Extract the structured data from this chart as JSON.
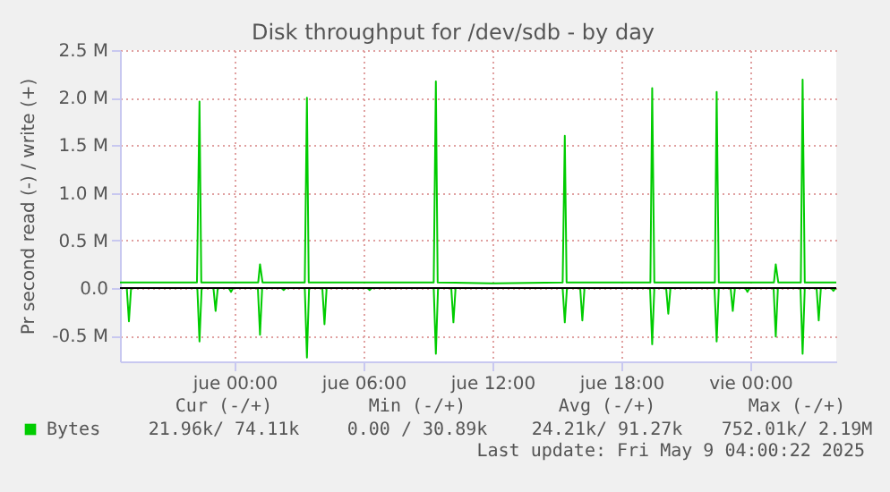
{
  "chart_data": {
    "type": "line",
    "title": "Disk throughput for /dev/sdb - by day",
    "ylabel": "Pr second read (-) / write (+)",
    "xlim": [
      "2025-05-07T18:40",
      "2025-05-09T04:00"
    ],
    "xticks": [
      {
        "value": "2025-05-08T00:00",
        "label": "jue 00:00"
      },
      {
        "value": "2025-05-08T06:00",
        "label": "jue 06:00"
      },
      {
        "value": "2025-05-08T12:00",
        "label": "jue 12:00"
      },
      {
        "value": "2025-05-08T18:00",
        "label": "jue 18:00"
      },
      {
        "value": "2025-05-09T00:00",
        "label": "vie 00:00"
      }
    ],
    "ylim": [
      -0.77,
      2.5
    ],
    "yticks": [
      {
        "value": -0.5,
        "label": "-0.5 M"
      },
      {
        "value": 0,
        "label": "0.0"
      },
      {
        "value": 0.5,
        "label": "0.5 M"
      },
      {
        "value": 1.0,
        "label": "1.0 M"
      },
      {
        "value": 1.5,
        "label": "1.5 M"
      },
      {
        "value": 2.0,
        "label": "2.0 M"
      },
      {
        "value": 2.5,
        "label": "2.5 M"
      }
    ],
    "grid": true,
    "legend": "bottom",
    "ref_lines": [
      {
        "axis": "y",
        "value": 0,
        "color": "#000000"
      }
    ],
    "series": [
      {
        "name": "Bytes",
        "color": "#00cc00",
        "x": [
          "2025-05-07T18:40",
          "2025-05-07T21:00",
          "2025-05-07T22:15",
          "2025-05-07T22:22",
          "2025-05-07T22:27",
          "2025-05-08T00:00",
          "2025-05-08T01:06",
          "2025-05-08T01:11",
          "2025-05-08T01:18",
          "2025-05-08T03:16",
          "2025-05-08T03:22",
          "2025-05-08T03:27",
          "2025-05-08T06:00",
          "2025-05-08T09:16",
          "2025-05-08T09:22",
          "2025-05-08T09:27",
          "2025-05-08T12:00",
          "2025-05-08T15:16",
          "2025-05-08T15:22",
          "2025-05-08T15:27",
          "2025-05-08T18:00",
          "2025-05-08T19:21",
          "2025-05-08T19:26",
          "2025-05-08T19:32",
          "2025-05-08T22:21",
          "2025-05-08T22:26",
          "2025-05-08T22:32",
          "2025-05-09T01:06",
          "2025-05-09T01:11",
          "2025-05-09T01:18",
          "2025-05-09T02:21",
          "2025-05-09T02:26",
          "2025-05-09T02:32",
          "2025-05-09T04:00"
        ],
        "values": [
          0.06,
          0.06,
          0.06,
          1.96,
          0.06,
          0.06,
          0.06,
          0.25,
          0.06,
          0.06,
          2.0,
          0.06,
          0.06,
          0.06,
          2.17,
          0.06,
          0.05,
          0.06,
          1.6,
          0.06,
          0.06,
          0.06,
          2.1,
          0.06,
          0.06,
          2.06,
          0.06,
          0.06,
          0.25,
          0.06,
          0.06,
          2.19,
          0.06,
          0.06
        ]
      },
      {
        "color": "#00cc00",
        "x": [
          "2025-05-07T18:40",
          "2025-05-07T18:59",
          "2025-05-07T19:05",
          "2025-05-07T19:11",
          "2025-05-07T22:16",
          "2025-05-07T22:22",
          "2025-05-07T22:28",
          "2025-05-07T23:01",
          "2025-05-07T23:07",
          "2025-05-07T23:13",
          "2025-05-07T23:44",
          "2025-05-07T23:50",
          "2025-05-07T23:56",
          "2025-05-08T01:05",
          "2025-05-08T01:11",
          "2025-05-08T01:17",
          "2025-05-08T02:11",
          "2025-05-08T02:17",
          "2025-05-08T02:23",
          "2025-05-08T03:16",
          "2025-05-08T03:22",
          "2025-05-08T03:28",
          "2025-05-08T04:05",
          "2025-05-08T04:11",
          "2025-05-08T04:17",
          "2025-05-08T06:11",
          "2025-05-08T06:17",
          "2025-05-08T06:23",
          "2025-05-08T09:16",
          "2025-05-08T09:22",
          "2025-05-08T09:28",
          "2025-05-08T10:05",
          "2025-05-08T10:11",
          "2025-05-08T10:17",
          "2025-05-08T15:16",
          "2025-05-08T15:22",
          "2025-05-08T15:28",
          "2025-05-08T16:05",
          "2025-05-08T16:11",
          "2025-05-08T16:17",
          "2025-05-08T19:20",
          "2025-05-08T19:26",
          "2025-05-08T19:32",
          "2025-05-08T20:05",
          "2025-05-08T20:11",
          "2025-05-08T20:17",
          "2025-05-08T22:20",
          "2025-05-08T22:26",
          "2025-05-08T22:32",
          "2025-05-08T23:05",
          "2025-05-08T23:11",
          "2025-05-08T23:17",
          "2025-05-08T23:46",
          "2025-05-08T23:52",
          "2025-05-08T23:58",
          "2025-05-09T01:05",
          "2025-05-09T01:11",
          "2025-05-09T01:17",
          "2025-05-09T02:20",
          "2025-05-09T02:26",
          "2025-05-09T02:32",
          "2025-05-09T03:05",
          "2025-05-09T03:11",
          "2025-05-09T03:17",
          "2025-05-09T03:46",
          "2025-05-09T03:52",
          "2025-05-09T03:58"
        ],
        "values": [
          0,
          0,
          -0.35,
          0,
          0,
          -0.56,
          0,
          0,
          -0.24,
          0,
          0,
          -0.04,
          0,
          0,
          -0.49,
          0,
          0,
          -0.02,
          0,
          0,
          -0.73,
          0,
          0,
          -0.38,
          0,
          0,
          -0.02,
          0,
          0,
          -0.69,
          0,
          0,
          -0.36,
          0,
          0,
          -0.36,
          0,
          0,
          -0.34,
          0,
          0,
          -0.59,
          0,
          0,
          -0.27,
          0,
          0,
          -0.56,
          0,
          0,
          -0.24,
          0,
          0,
          -0.04,
          0,
          0,
          -0.51,
          0,
          0,
          -0.69,
          0,
          0,
          -0.34,
          0,
          0,
          -0.03,
          0
        ]
      }
    ],
    "annotations": [
      "Cur (-/+)",
      "Min (-/+)",
      "Avg (-/+)",
      "Max (-/+)",
      "21.96k/ 74.11k",
      "0.00 / 30.89k",
      "24.21k/ 91.27k",
      "752.01k/  2.19M",
      "Last update: Fri May  9 04:00:22 2025"
    ]
  }
}
